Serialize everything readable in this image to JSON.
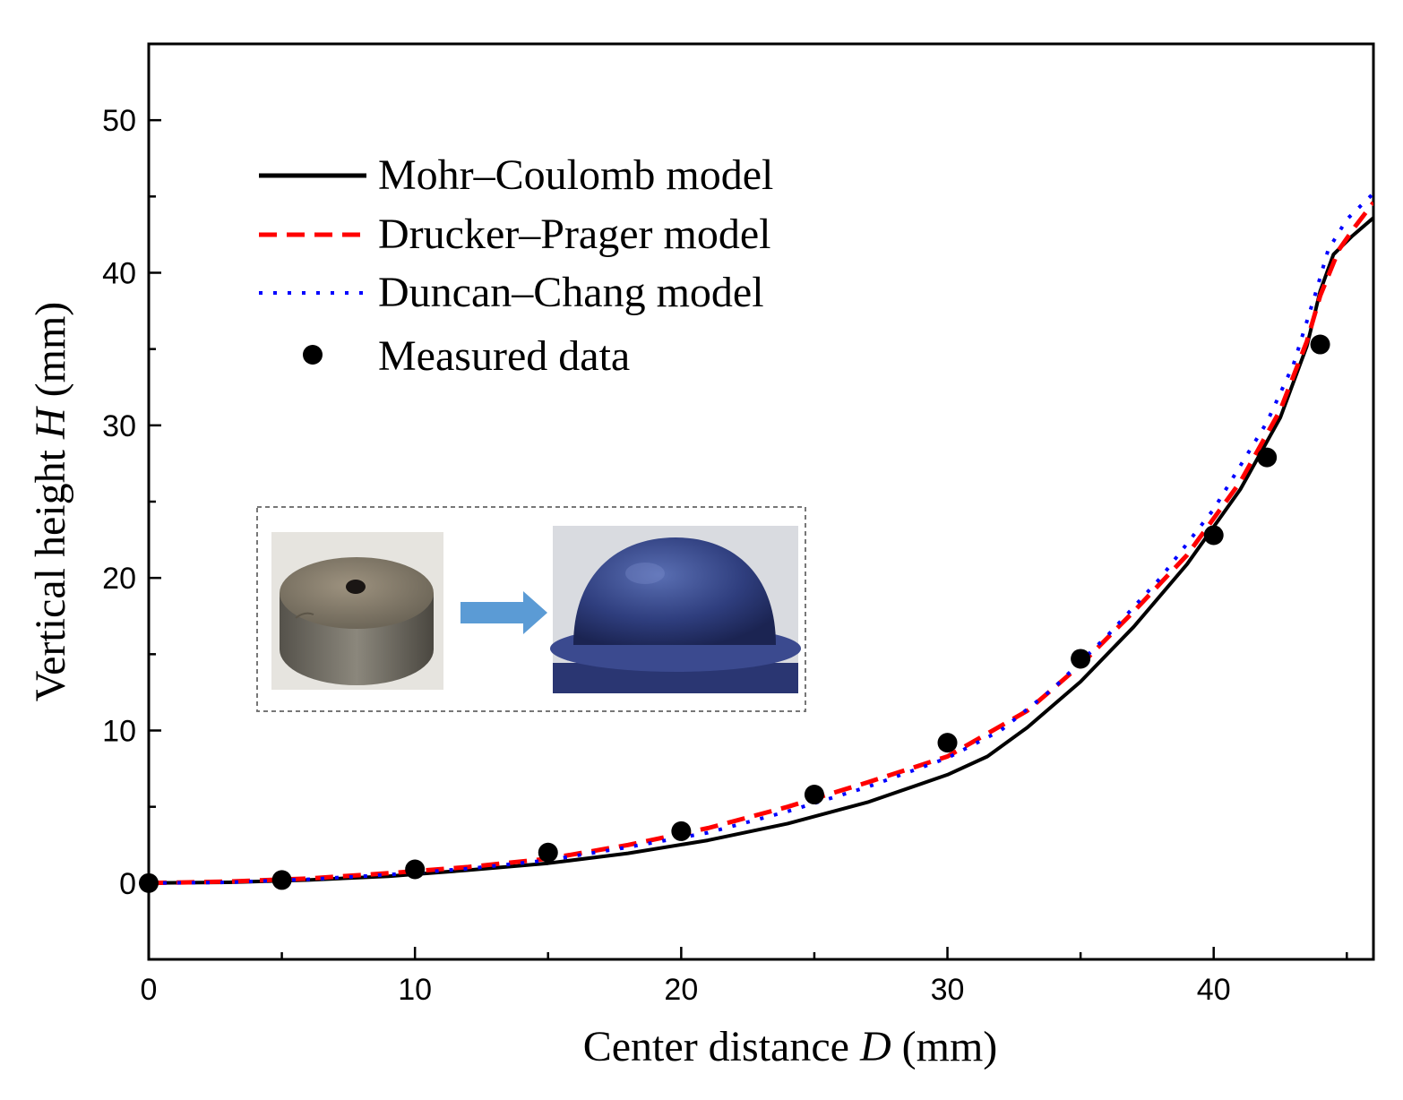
{
  "chart_data": {
    "type": "line",
    "xlabel": "Center distance D (mm)",
    "xlabel_parts": {
      "prefix": "Center distance ",
      "var": "D",
      "suffix": " (mm)"
    },
    "ylabel": "Vertical height H (mm)",
    "ylabel_parts": {
      "prefix": "Vertical height ",
      "var": "H",
      "suffix": " (mm)"
    },
    "xlim": [
      0,
      46
    ],
    "ylim": [
      -5,
      55
    ],
    "xticks": [
      0,
      10,
      20,
      30,
      40
    ],
    "yticks": [
      0,
      10,
      20,
      30,
      40,
      50
    ],
    "legend_position": "upper-left",
    "series": [
      {
        "name": "Mohr–Coulomb model",
        "style": "solid",
        "color": "#000000",
        "x": [
          0,
          3,
          6,
          9,
          12,
          15,
          18,
          21,
          24,
          27,
          30,
          31.5,
          33,
          35,
          37,
          39,
          41,
          42.5,
          43.5,
          44,
          44.5,
          45.2,
          46
        ],
        "y": [
          0,
          0.05,
          0.2,
          0.45,
          0.85,
          1.3,
          1.95,
          2.8,
          3.9,
          5.3,
          7.1,
          8.3,
          10.2,
          13.2,
          16.8,
          20.9,
          25.8,
          30.5,
          35.2,
          38.8,
          41.2,
          42.4,
          43.6
        ]
      },
      {
        "name": "Drucker–Prager model",
        "style": "dashed",
        "color": "#ff0000",
        "x": [
          0,
          3,
          6,
          9,
          12,
          15,
          18,
          21,
          24,
          27,
          30,
          33,
          35,
          37,
          39,
          41,
          42.5,
          43.5,
          44,
          44.7,
          45.3,
          46
        ],
        "y": [
          0,
          0.1,
          0.3,
          0.65,
          1.05,
          1.6,
          2.5,
          3.6,
          5,
          6.6,
          8.3,
          11.3,
          14.3,
          17.8,
          21.5,
          26.3,
          31,
          35.5,
          38.5,
          41.5,
          43,
          44.6
        ]
      },
      {
        "name": "Duncan–Chang model",
        "style": "dotted",
        "color": "#0000ff",
        "x": [
          0,
          3,
          6,
          9,
          12,
          15,
          18,
          21,
          24,
          27,
          30,
          32,
          34,
          36,
          38,
          40,
          42,
          43,
          43.8,
          44.3,
          45,
          46
        ],
        "y": [
          0,
          0.05,
          0.25,
          0.55,
          0.95,
          1.5,
          2.35,
          3.3,
          4.7,
          6.3,
          8.2,
          10,
          12.8,
          16.2,
          20,
          24.5,
          30.2,
          34,
          38.5,
          41.5,
          43.5,
          45.2
        ]
      },
      {
        "name": "Measured data",
        "style": "markers",
        "color": "#000000",
        "x": [
          0,
          5,
          10,
          15,
          20,
          25,
          30,
          35,
          40,
          42,
          44
        ],
        "y": [
          0,
          0.2,
          0.9,
          2,
          3.4,
          5.8,
          9.2,
          14.7,
          22.8,
          27.9,
          35.3
        ]
      }
    ],
    "inset": {
      "caption": "",
      "left_image": "drilled-cylinder-specimen",
      "right_image": "deformed-dome-specimen",
      "arrow": "right-arrow",
      "arrow_color": "#5b9bd5"
    }
  }
}
